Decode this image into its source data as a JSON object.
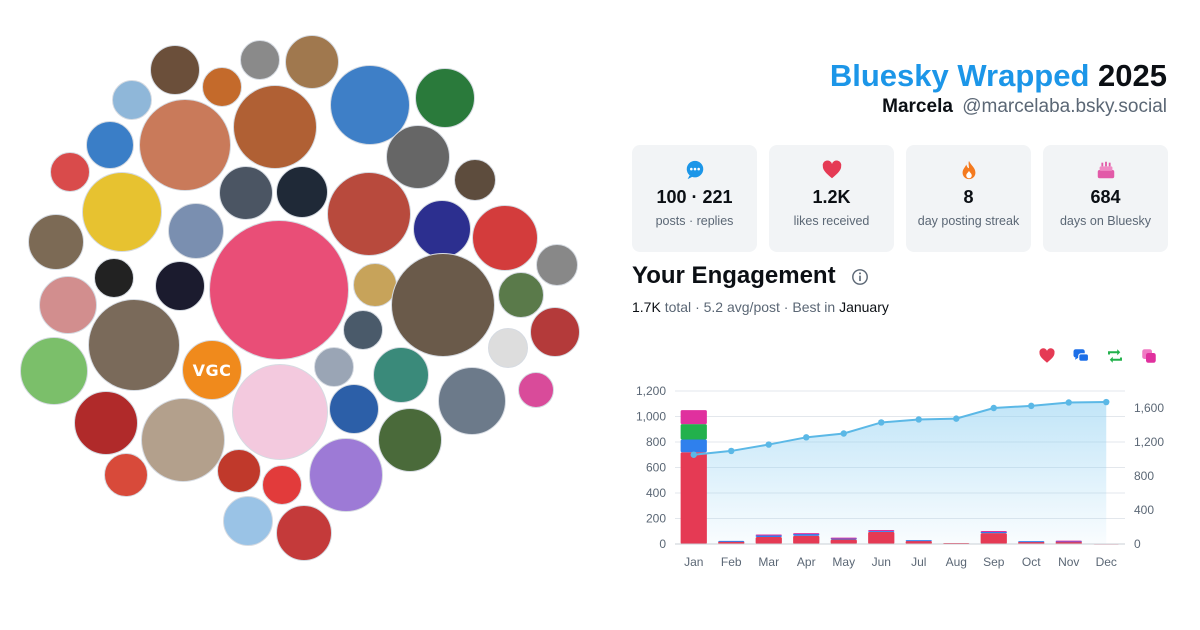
{
  "header": {
    "brand": "Bluesky Wrapped",
    "year": "2025",
    "display_name": "Marcela",
    "handle": "@marcelaba.bsky.social"
  },
  "stats": [
    {
      "icon": "chat-bubble-icon",
      "value": "100 · 221",
      "label": "posts · replies",
      "color": "#1c96e8"
    },
    {
      "icon": "heart-icon",
      "value": "1.2K",
      "label": "likes received",
      "color": "#e53a54"
    },
    {
      "icon": "flame-icon",
      "value": "8",
      "label": "day posting streak",
      "color": "#f47a1f"
    },
    {
      "icon": "cake-icon",
      "value": "684",
      "label": "days on Bluesky",
      "color": "#e25aa8"
    }
  ],
  "engagement": {
    "title": "Your Engagement",
    "total_value": "1.7K",
    "total_label": "total",
    "sep1": "·",
    "avg": "5.2 avg/post",
    "sep2": "·",
    "best_label": "Best in",
    "best_month": "January"
  },
  "legend_icons": [
    {
      "name": "likes-legend-icon",
      "color": "#e53a54"
    },
    {
      "name": "replies-legend-icon",
      "color": "#1c6fe8"
    },
    {
      "name": "reposts-legend-icon",
      "color": "#22b14c"
    },
    {
      "name": "quotes-legend-icon",
      "color": "#e0309e"
    }
  ],
  "colors": {
    "likes": "#e53a54",
    "replies": "#2f80ed",
    "reposts": "#22b14c",
    "quotes": "#e0309e",
    "cumulative": "#5bb8e6"
  },
  "chart_data": {
    "type": "bar",
    "categories": [
      "Jan",
      "Feb",
      "Mar",
      "Apr",
      "May",
      "Jun",
      "Jul",
      "Aug",
      "Sep",
      "Oct",
      "Nov",
      "Dec"
    ],
    "series": [
      {
        "values": [
          720,
          20,
          55,
          65,
          35,
          95,
          25,
          8,
          85,
          18,
          18,
          3
        ]
      },
      {
        "values": [
          100,
          5,
          15,
          15,
          10,
          10,
          5,
          0,
          12,
          5,
          5,
          0
        ]
      },
      {
        "values": [
          120,
          0,
          0,
          0,
          0,
          0,
          0,
          0,
          0,
          0,
          0,
          0
        ]
      },
      {
        "values": [
          110,
          0,
          5,
          5,
          5,
          5,
          0,
          0,
          5,
          0,
          3,
          0
        ]
      }
    ],
    "cumulative": {
      "values": [
        1050,
        1095,
        1170,
        1255,
        1300,
        1430,
        1465,
        1475,
        1600,
        1625,
        1665,
        1670
      ]
    },
    "ylim": [
      0,
      1200
    ],
    "yticks": [
      "0",
      "200",
      "400",
      "600",
      "800",
      "1,000",
      "1,200"
    ],
    "y2lim": [
      0,
      1800
    ],
    "y2ticks": [
      "0",
      "400",
      "800",
      "1,200",
      "1,600"
    ],
    "grid": true
  },
  "avatar_cloud": [
    {
      "label": "",
      "color": "#6b4f3a"
    },
    {
      "label": "",
      "color": "#8a8a8a"
    },
    {
      "label": "",
      "color": "#a0784e"
    },
    {
      "label": "",
      "color": "#3e7fc7"
    },
    {
      "label": "",
      "color": "#2a7a3b"
    },
    {
      "label": "",
      "color": "#8fb7d9"
    },
    {
      "label": "",
      "color": "#c46a2b"
    },
    {
      "label": "",
      "color": "#3a7ec7"
    },
    {
      "label": "",
      "color": "#c97a5a"
    },
    {
      "label": "",
      "color": "#b06034"
    },
    {
      "label": "",
      "color": "#d94b4b"
    },
    {
      "label": "",
      "color": "#5d4c3d"
    },
    {
      "label": "",
      "color": "#e7c230"
    },
    {
      "label": "",
      "color": "#666"
    },
    {
      "label": "",
      "color": "#4b5563"
    },
    {
      "label": "",
      "color": "#1f2937"
    },
    {
      "label": "",
      "color": "#b84a3d"
    },
    {
      "label": "",
      "color": "#2c2f8f"
    },
    {
      "label": "",
      "color": "#7c6a55"
    },
    {
      "label": "",
      "color": "#7a8fb0"
    },
    {
      "label": "",
      "color": "#d33c3c"
    },
    {
      "label": "",
      "color": "#888"
    },
    {
      "label": "",
      "color": "#222"
    },
    {
      "label": "",
      "color": "#d28e8e"
    },
    {
      "label": "",
      "color": "#1b1b2e"
    },
    {
      "label": "",
      "color": "#e94e77"
    },
    {
      "label": "",
      "color": "#c7a35a"
    },
    {
      "label": "",
      "color": "#6a5a4a"
    },
    {
      "label": "",
      "color": "#5a7a4a"
    },
    {
      "label": "",
      "color": "#b43a3a"
    },
    {
      "label": "",
      "color": "#7a6a5a"
    },
    {
      "label": "VGC",
      "color": "#f08a1c"
    },
    {
      "label": "",
      "color": "#4a5a6a"
    },
    {
      "label": "",
      "color": "#ddd"
    },
    {
      "label": "",
      "color": "#3a8a7a"
    },
    {
      "label": "",
      "color": "#7bbf6a"
    },
    {
      "label": "",
      "color": "#b02a2a"
    },
    {
      "label": "",
      "color": "#9aa5b5"
    },
    {
      "label": "",
      "color": "#6c7a8a"
    },
    {
      "label": "",
      "color": "#d94b9a"
    },
    {
      "label": "",
      "color": "#b3a08c"
    },
    {
      "label": "",
      "color": "#f3c9de"
    },
    {
      "label": "",
      "color": "#2c5fa8"
    },
    {
      "label": "",
      "color": "#4a6a3a"
    },
    {
      "label": "",
      "color": "#c0392b"
    },
    {
      "label": "",
      "color": "#e23b3b"
    },
    {
      "label": "",
      "color": "#9d7ad6"
    },
    {
      "label": "",
      "color": "#d84a3a"
    },
    {
      "label": "",
      "color": "#9ac3e6"
    },
    {
      "label": "",
      "color": "#c43a3a"
    }
  ]
}
